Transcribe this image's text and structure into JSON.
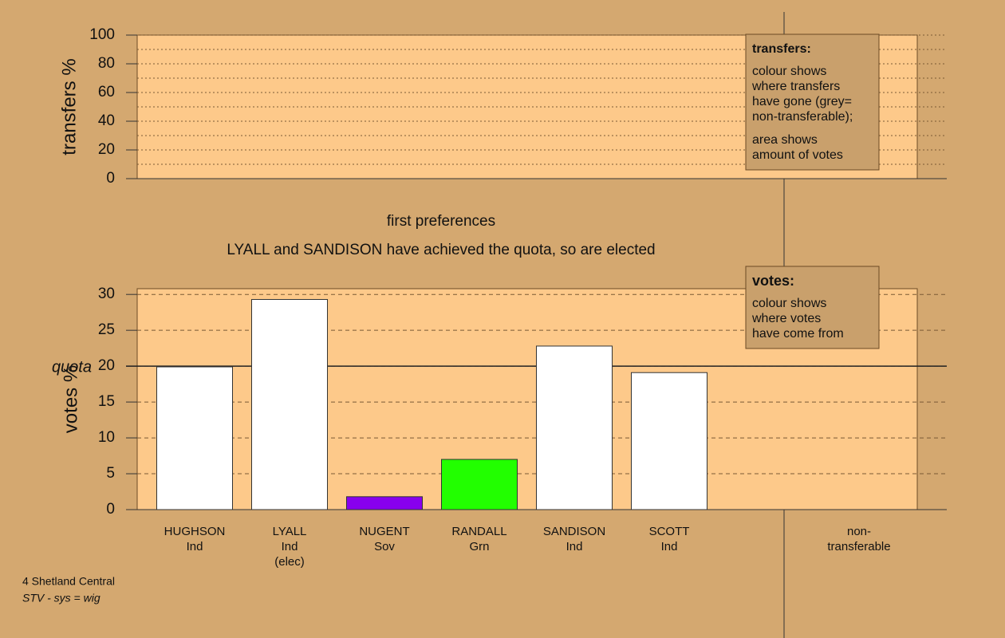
{
  "chart_data": [
    {
      "type": "panel",
      "ylabel": "transfers %",
      "ylim": [
        0,
        100
      ],
      "yticks": [
        0,
        20,
        40,
        60,
        80,
        100
      ],
      "minor_yticks": [
        10,
        30,
        50,
        70,
        90
      ],
      "legend_note": {
        "title": "transfers:",
        "paragraphs": [
          [
            "colour shows",
            "where transfers",
            "have gone (grey=",
            "non-transferable);"
          ],
          [
            "area shows",
            "amount of votes"
          ]
        ]
      },
      "title": "first preferences",
      "subtitle": "LYALL and SANDISON have achieved the quota, so are elected"
    },
    {
      "type": "bar",
      "ylabel": "votes %",
      "ylim": [
        0,
        30.8
      ],
      "yticks": [
        0,
        5,
        10,
        15,
        20,
        25,
        30
      ],
      "quota": {
        "value": 20,
        "label": "quota"
      },
      "categories": [
        [
          "HUGHSON",
          "Ind"
        ],
        [
          "LYALL",
          "Ind",
          "(elec)"
        ],
        [
          "NUGENT",
          "Sov"
        ],
        [
          "RANDALL",
          "Grn"
        ],
        [
          "SANDISON",
          "Ind"
        ],
        [
          "SCOTT",
          "Ind"
        ],
        [
          "non-",
          "transferable"
        ]
      ],
      "values": [
        19.9,
        29.3,
        1.8,
        7.0,
        22.8,
        19.1,
        null
      ],
      "colors": [
        "#ffffff",
        "#ffffff",
        "#8800ee",
        "#22ff00",
        "#ffffff",
        "#ffffff",
        null
      ],
      "legend_note": {
        "title": "votes:",
        "paragraphs": [
          [
            "colour shows",
            "where votes",
            "have come from"
          ]
        ]
      }
    }
  ],
  "footer": [
    "4 Shetland Central",
    "STV - sys = wig"
  ]
}
